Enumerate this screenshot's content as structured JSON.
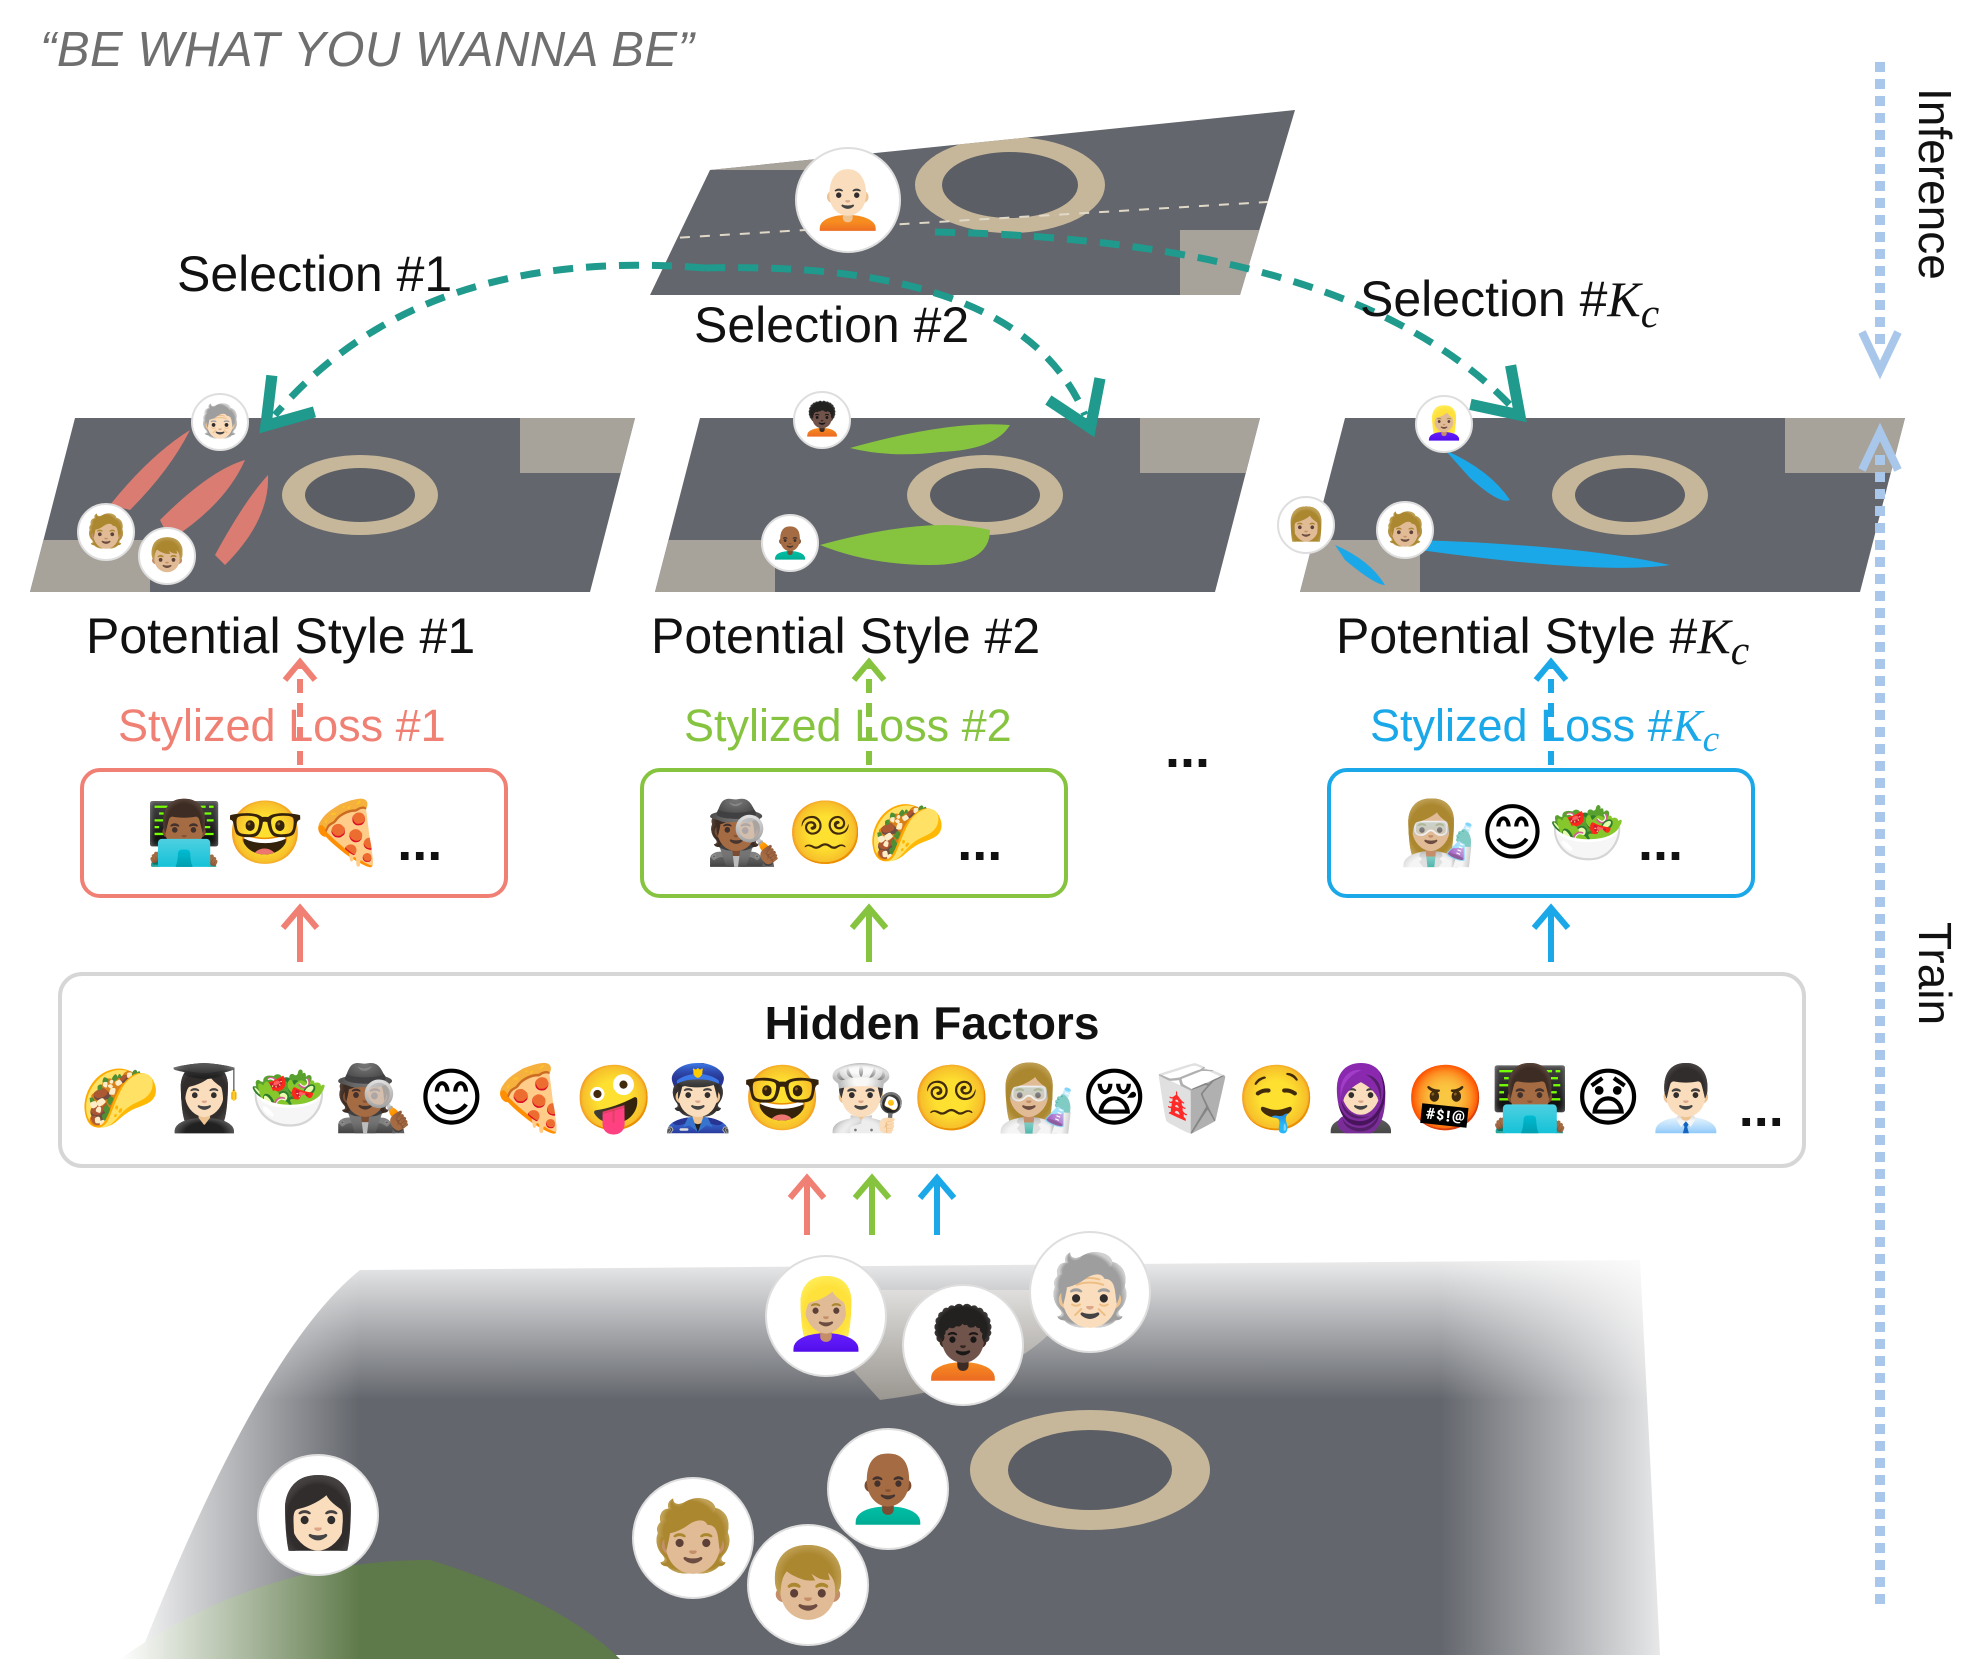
{
  "motto": "“BE WHAT YOU WANNA BE”",
  "selections": [
    {
      "prefix": "Selection #1",
      "math": "",
      "sub": ""
    },
    {
      "prefix": "Selection #2",
      "math": "",
      "sub": ""
    },
    {
      "prefix": "Selection #",
      "math": "K",
      "sub": "c"
    }
  ],
  "styles": [
    {
      "prefix": "Potential Style #1",
      "math": "",
      "sub": ""
    },
    {
      "prefix": "Potential Style #2",
      "math": "",
      "sub": ""
    },
    {
      "prefix": "Potential Style #",
      "math": "K",
      "sub": "c"
    }
  ],
  "losses": [
    {
      "prefix": "Stylized Loss #1",
      "math": "",
      "sub": "",
      "color": "#f08074"
    },
    {
      "prefix": "Stylized Loss #2",
      "math": "",
      "sub": "",
      "color": "#86c440"
    },
    {
      "prefix": "Stylized Loss #",
      "math": "K",
      "sub": "c",
      "color": "#1aa8e8"
    }
  ],
  "loss_emojis": [
    {
      "emojis": [
        "👨🏾‍💻",
        "🤓",
        "🍕"
      ],
      "more": "..."
    },
    {
      "emojis": [
        "🕵🏾",
        "😵‍💫",
        "🌮"
      ],
      "more": "..."
    },
    {
      "emojis": [
        "👩🏼‍🔬",
        "😊",
        "🥗"
      ],
      "more": "..."
    }
  ],
  "middle_ellipsis": "...",
  "hidden_factors": {
    "title": "Hidden Factors",
    "emojis": [
      "🌮",
      "👩🏻‍🎓",
      "🥗",
      "🕵🏾",
      "😊",
      "🍕",
      "🤪",
      "👮🏻",
      "🤓",
      "👨🏻‍🍳",
      "😵‍💫",
      "👩🏼‍🔬",
      "😪",
      "🥡",
      "🤤",
      "🧕🏻",
      "🤬",
      "👨🏾‍💻",
      "😧",
      "👨🏻‍💼"
    ],
    "more": "..."
  },
  "side_labels": {
    "inference": "Inference",
    "train": "Train"
  },
  "colors": {
    "red": "#f08074",
    "green": "#86c440",
    "blue": "#1aa8e8",
    "teal": "#1f9a8c",
    "side_axis": "#a9c7ea",
    "road": "#63666c"
  },
  "avatars": {
    "query": "🧑🏻‍🦲",
    "style1": [
      "🧓🏻",
      "🧑🏼",
      "👦🏼"
    ],
    "style2": [
      "🧑🏿‍🦱",
      "👨🏾‍🦲"
    ],
    "style3": [
      "👱🏼‍♀️",
      "👩🏼",
      "🧑🏼"
    ],
    "bottom": [
      "👱🏼‍♀️",
      "🧑🏿‍🦱",
      "🧓🏻",
      "👩🏻",
      "🧑🏼",
      "👨🏾‍🦲",
      "👦🏼"
    ]
  }
}
